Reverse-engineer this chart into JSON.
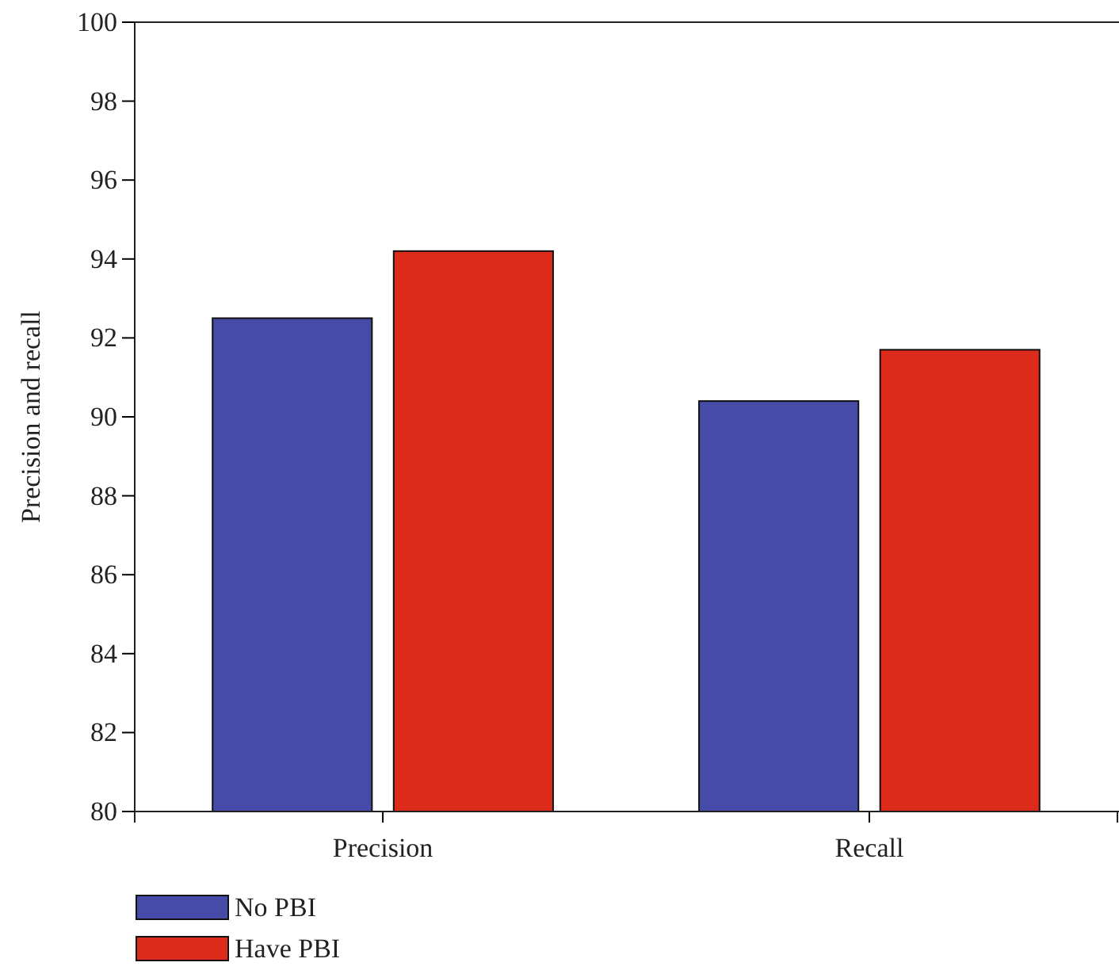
{
  "chart_data": {
    "type": "bar",
    "ylabel": "Precision and recall",
    "categories": [
      "Precision",
      "Recall"
    ],
    "series": [
      {
        "name": "No PBI",
        "color": "#454ba6",
        "values": [
          92.5,
          90.4
        ]
      },
      {
        "name": "Have PBI",
        "color": "#dc2b1b",
        "values": [
          94.2,
          91.7
        ]
      }
    ],
    "ylim": [
      80,
      100
    ],
    "yticks": [
      80,
      82,
      84,
      86,
      88,
      90,
      92,
      94,
      96,
      98,
      100
    ],
    "legend": "bottom left",
    "grid": false
  }
}
